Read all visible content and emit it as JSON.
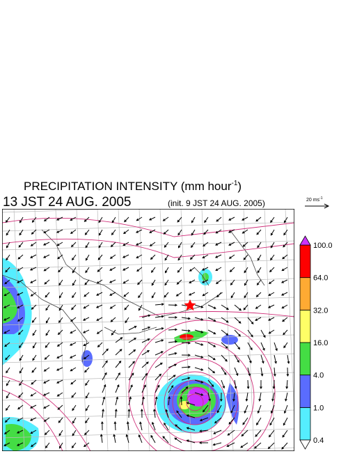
{
  "header": {
    "title": {
      "text": "PRECIPITATION INTENSITY (mm hour",
      "superscript": "-1",
      "suffix": ")"
    },
    "time": "13 JST 24 AUG. 2005",
    "init": "(init. 9 JST 24 AUG. 2005)"
  },
  "vector_scale": {
    "text": "20 ms",
    "superscript": "-1"
  },
  "colorbar": {
    "labels": [
      "0.4",
      "1.0",
      "4.0",
      "16.0",
      "32.0",
      "64.0",
      "100.0"
    ],
    "under_color": "#ffffff",
    "colors": [
      "#55eeff",
      "#5a6cff",
      "#44dd44",
      "#ffff66",
      "#ffaa33",
      "#ff0000"
    ],
    "over_color": "#cc33ff"
  }
}
